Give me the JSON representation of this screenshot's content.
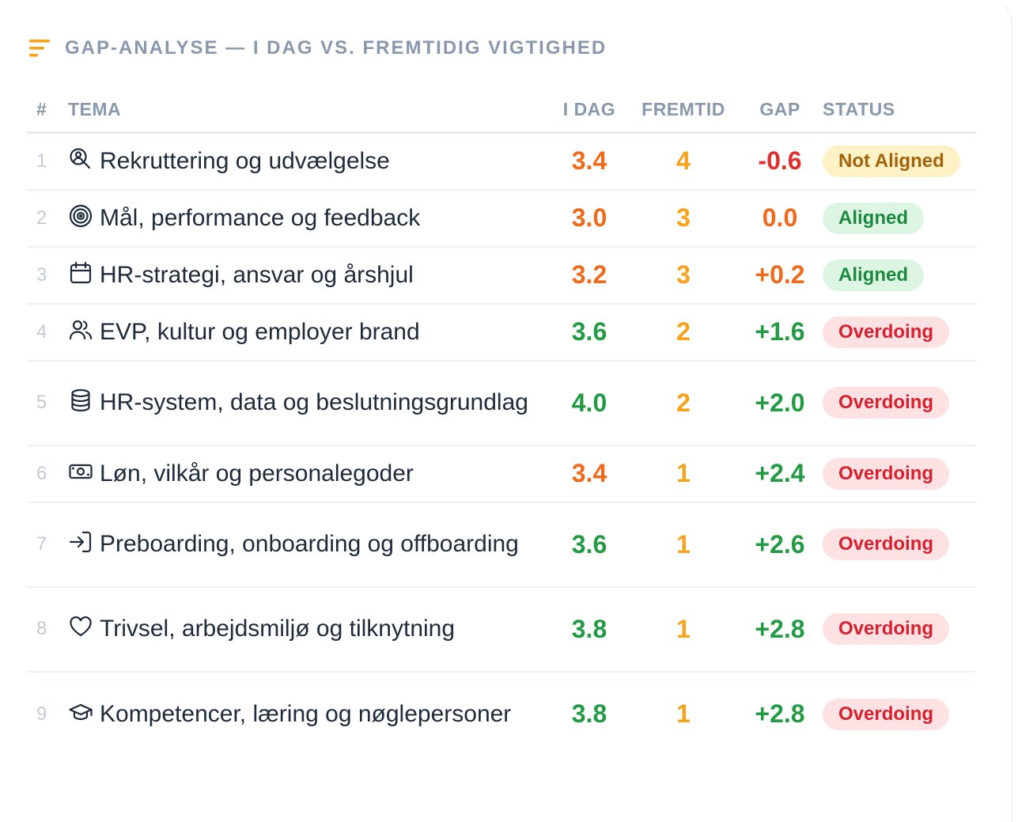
{
  "header": {
    "title": "GAP-ANALYSE — I DAG VS. FREMTIDIG VIGTIGHED",
    "icon": "sort-lines-icon"
  },
  "columns": {
    "num": "#",
    "tema": "TEMA",
    "idag": "I DAG",
    "fremtid": "FREMTID",
    "gap": "GAP",
    "status": "STATUS"
  },
  "colors": {
    "orange": "#ef6a1a",
    "amber": "#f7a21a",
    "red": "#e02e2e",
    "green": "#239a44",
    "not_aligned_bg": "#fdf1c6",
    "not_aligned_fg": "#a3620c",
    "aligned_bg": "#ddf6e3",
    "aligned_fg": "#1c8a3e",
    "overdoing_bg": "#fde1e3",
    "overdoing_fg": "#d8212f"
  },
  "rows": [
    {
      "num": "1",
      "icon": "search-user-icon",
      "tema": "Rekruttering og udvælgelse",
      "idag": "3.4",
      "idag_color": "orange",
      "fremtid": "4",
      "gap": "-0.6",
      "gap_color": "red",
      "status": "Not Aligned",
      "status_kind": "not_aligned"
    },
    {
      "num": "2",
      "icon": "target-icon",
      "tema": "Mål, performance og feedback",
      "idag": "3.0",
      "idag_color": "orange",
      "fremtid": "3",
      "gap": "0.0",
      "gap_color": "orange",
      "status": "Aligned",
      "status_kind": "aligned"
    },
    {
      "num": "3",
      "icon": "calendar-icon",
      "tema": "HR-strategi, ansvar og årshjul",
      "idag": "3.2",
      "idag_color": "orange",
      "fremtid": "3",
      "gap": "+0.2",
      "gap_color": "orange",
      "status": "Aligned",
      "status_kind": "aligned"
    },
    {
      "num": "4",
      "icon": "users-icon",
      "tema": "EVP, kultur og employer brand",
      "idag": "3.6",
      "idag_color": "green",
      "fremtid": "2",
      "gap": "+1.6",
      "gap_color": "green",
      "status": "Overdoing",
      "status_kind": "overdoing"
    },
    {
      "num": "5",
      "icon": "database-icon",
      "tema": "HR-system, data og beslutningsgrundlag",
      "idag": "4.0",
      "idag_color": "green",
      "fremtid": "2",
      "gap": "+2.0",
      "gap_color": "green",
      "status": "Overdoing",
      "status_kind": "overdoing"
    },
    {
      "num": "6",
      "icon": "banknote-icon",
      "tema": "Løn, vilkår og personalegoder",
      "idag": "3.4",
      "idag_color": "orange",
      "fremtid": "1",
      "gap": "+2.4",
      "gap_color": "green",
      "status": "Overdoing",
      "status_kind": "overdoing"
    },
    {
      "num": "7",
      "icon": "sign-in-icon",
      "tema": "Preboarding, onboarding og offboarding",
      "idag": "3.6",
      "idag_color": "green",
      "fremtid": "1",
      "gap": "+2.6",
      "gap_color": "green",
      "status": "Overdoing",
      "status_kind": "overdoing"
    },
    {
      "num": "8",
      "icon": "heart-icon",
      "tema": "Trivsel, arbejdsmiljø og tilknytning",
      "idag": "3.8",
      "idag_color": "green",
      "fremtid": "1",
      "gap": "+2.8",
      "gap_color": "green",
      "status": "Overdoing",
      "status_kind": "overdoing"
    },
    {
      "num": "9",
      "icon": "graduation-cap-icon",
      "tema": "Kompetencer, læring og nøglepersoner",
      "idag": "3.8",
      "idag_color": "green",
      "fremtid": "1",
      "gap": "+2.8",
      "gap_color": "green",
      "status": "Overdoing",
      "status_kind": "overdoing"
    }
  ]
}
